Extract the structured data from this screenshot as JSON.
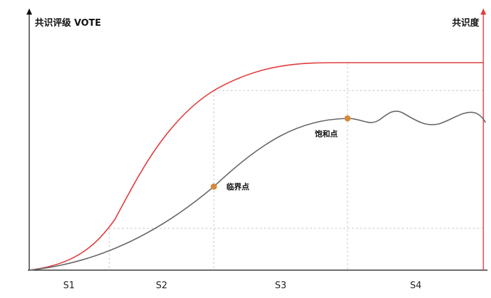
{
  "left_axis_title": "共识评级 VOTE",
  "right_axis_title": "共识度",
  "stages": [
    "S1",
    "S2",
    "S3",
    "S4"
  ],
  "points": {
    "critical": "临界点",
    "saturation": "饱和点"
  },
  "colors": {
    "red_curve": "#e23b3b",
    "gray_curve": "#666666",
    "point_fill": "#d58a3b",
    "grid": "#c9c9c9",
    "axis": "#111111"
  }
}
